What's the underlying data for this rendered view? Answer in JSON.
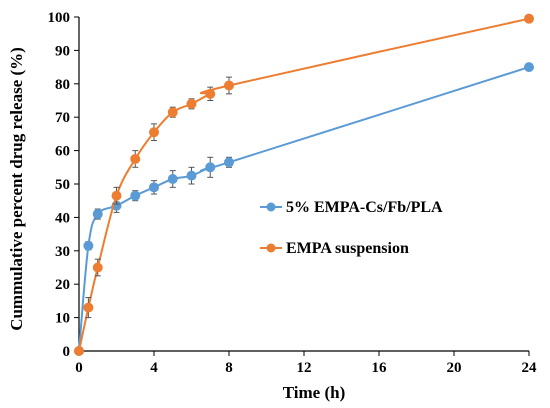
{
  "chart_data": {
    "type": "line",
    "title": "",
    "xlabel": "Time (h)",
    "ylabel": "Cummulative percent drug release (%)",
    "xlim": [
      0,
      24
    ],
    "ylim": [
      0,
      100
    ],
    "xticks": [
      0,
      4,
      8,
      12,
      16,
      20,
      24
    ],
    "yticks": [
      0,
      10,
      20,
      30,
      40,
      50,
      60,
      70,
      80,
      90,
      100
    ],
    "grid": false,
    "legend_position": "right",
    "series": [
      {
        "name": "5% EMPA-Cs/Fb/PLA",
        "color": "#5b9bd5",
        "points": [
          {
            "x": 0,
            "y": 0,
            "err": 0
          },
          {
            "x": 0.5,
            "y": 31.5,
            "err": 1.2
          },
          {
            "x": 1,
            "y": 41,
            "err": 1.5
          },
          {
            "x": 2,
            "y": 43.5,
            "err": 2
          },
          {
            "x": 3,
            "y": 46.5,
            "err": 1.5
          },
          {
            "x": 4,
            "y": 49,
            "err": 2
          },
          {
            "x": 5,
            "y": 51.5,
            "err": 2.5
          },
          {
            "x": 6,
            "y": 52.5,
            "err": 2.5
          },
          {
            "x": 7,
            "y": 55,
            "err": 3
          },
          {
            "x": 8,
            "y": 56.5,
            "err": 1.5
          },
          {
            "x": 24,
            "y": 85,
            "err": 0
          }
        ]
      },
      {
        "name": "EMPA suspension",
        "color": "#ed7d31",
        "points": [
          {
            "x": 0,
            "y": 0,
            "err": 0
          },
          {
            "x": 0.5,
            "y": 13,
            "err": 3
          },
          {
            "x": 1,
            "y": 25,
            "err": 2.5
          },
          {
            "x": 2,
            "y": 46.5,
            "err": 2.5
          },
          {
            "x": 3,
            "y": 57.5,
            "err": 2.5
          },
          {
            "x": 4,
            "y": 65.5,
            "err": 2.5
          },
          {
            "x": 5,
            "y": 71.5,
            "err": 1.5
          },
          {
            "x": 6,
            "y": 74,
            "err": 1.5
          },
          {
            "x": 7,
            "y": 77,
            "err": 2
          },
          {
            "x": 8,
            "y": 79.5,
            "err": 2.5
          },
          {
            "x": 24,
            "y": 99.5,
            "err": 0
          }
        ]
      }
    ]
  }
}
